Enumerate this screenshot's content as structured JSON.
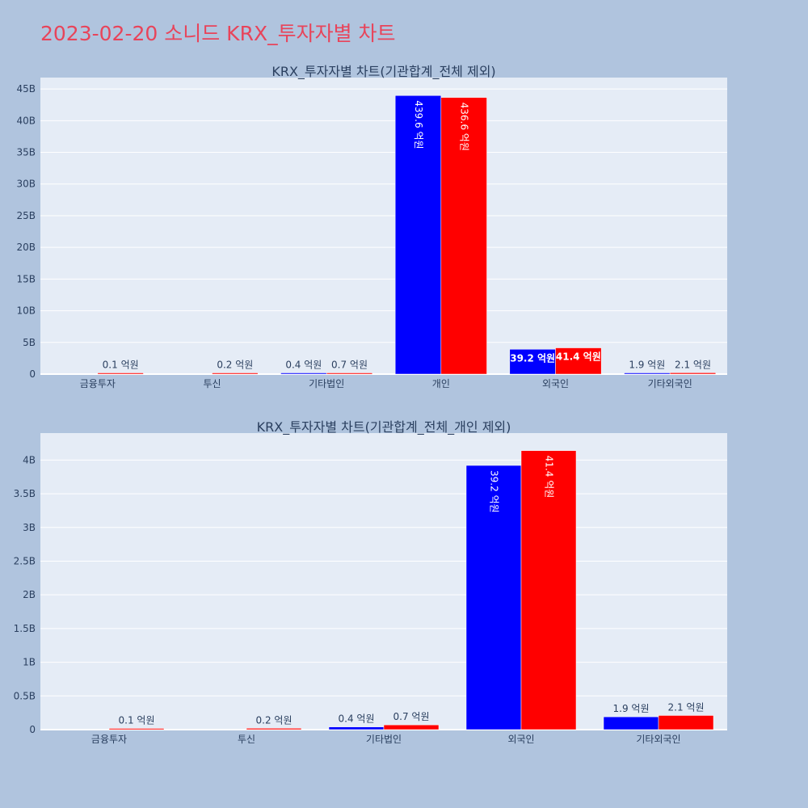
{
  "page": {
    "title": "2023-02-20 소니드 KRX_투자자별 차트"
  },
  "colors": {
    "page_background": "#b0c4de",
    "plot_background": "#e5ecf6",
    "title": "#e8445a",
    "series_1": "#0000ff",
    "series_2": "#ff0000"
  },
  "chart_data": [
    {
      "type": "bar",
      "title": "KRX_투자자별 차트(기관합계_전체 제외)",
      "categories": [
        "금융투자",
        "투신",
        "기타법인",
        "개인",
        "외국인",
        "기타외국인"
      ],
      "series": [
        {
          "color": "#0000ff",
          "values": [
            0,
            0,
            0.04,
            43.96,
            3.92,
            0.19
          ],
          "labels": [
            "",
            "",
            "0.4 억원",
            "439.6 억원",
            "39.2 억원",
            "1.9 억원"
          ]
        },
        {
          "color": "#ff0000",
          "values": [
            0.01,
            0.02,
            0.07,
            43.66,
            4.14,
            0.21
          ],
          "labels": [
            "0.1 억원",
            "0.2 억원",
            "0.7 억원",
            "436.6 억원",
            "41.4 억원",
            "2.1 억원"
          ]
        }
      ],
      "ylim": [
        0,
        46.8
      ],
      "yticks": [
        0,
        5,
        10,
        15,
        20,
        25,
        30,
        35,
        40,
        45
      ],
      "ytick_labels": [
        "0",
        "5B",
        "10B",
        "15B",
        "20B",
        "25B",
        "30B",
        "35B",
        "40B",
        "45B"
      ],
      "grid": true,
      "legend": "none"
    },
    {
      "type": "bar",
      "title": "KRX_투자자별 차트(기관합계_전체_개인 제외)",
      "categories": [
        "금융투자",
        "투신",
        "기타법인",
        "외국인",
        "기타외국인"
      ],
      "series": [
        {
          "color": "#0000ff",
          "values": [
            0,
            0,
            0.04,
            3.92,
            0.19
          ],
          "labels": [
            "",
            "",
            "0.4 억원",
            "39.2 억원",
            "1.9 억원"
          ]
        },
        {
          "color": "#ff0000",
          "values": [
            0.01,
            0.02,
            0.07,
            4.14,
            0.21
          ],
          "labels": [
            "0.1 억원",
            "0.2 억원",
            "0.7 억원",
            "41.4 억원",
            "2.1 억원"
          ]
        }
      ],
      "ylim": [
        0,
        4.4
      ],
      "yticks": [
        0,
        0.5,
        1,
        1.5,
        2,
        2.5,
        3,
        3.5,
        4
      ],
      "ytick_labels": [
        "0",
        "0.5B",
        "1B",
        "1.5B",
        "2B",
        "2.5B",
        "3B",
        "3.5B",
        "4B"
      ],
      "grid": true,
      "legend": "none"
    }
  ]
}
